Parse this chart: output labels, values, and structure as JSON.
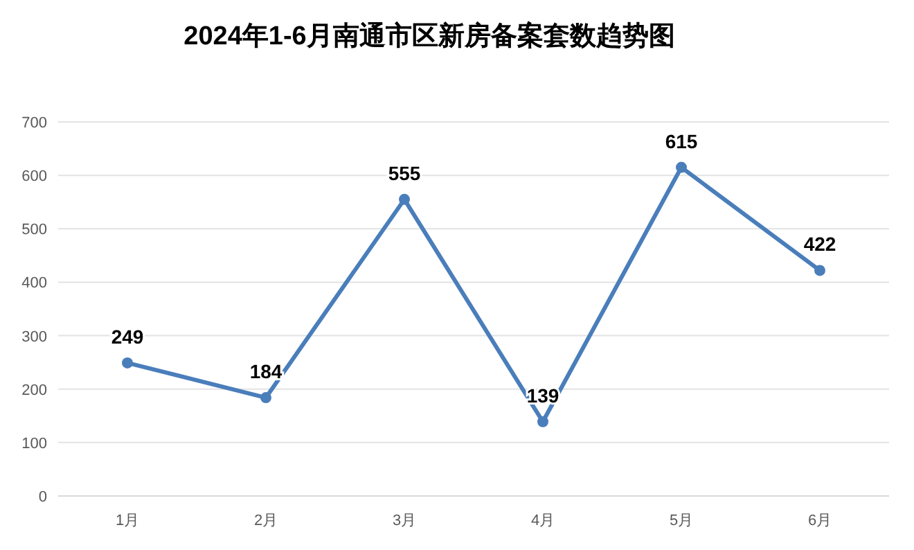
{
  "chart_data": {
    "type": "line",
    "title": "2024年1-6月南通市区新房备案套数趋势图",
    "categories": [
      "1月",
      "2月",
      "3月",
      "4月",
      "5月",
      "6月"
    ],
    "series": [
      {
        "color": "#4a7ebb",
        "values": [
          249,
          184,
          555,
          139,
          615,
          422
        ]
      }
    ],
    "ylim": [
      0,
      700
    ],
    "yticks": [
      0,
      100,
      200,
      300,
      400,
      500,
      600,
      700
    ],
    "grid": "y",
    "marker": "circle",
    "line_style": "solid",
    "data_labels": true
  }
}
